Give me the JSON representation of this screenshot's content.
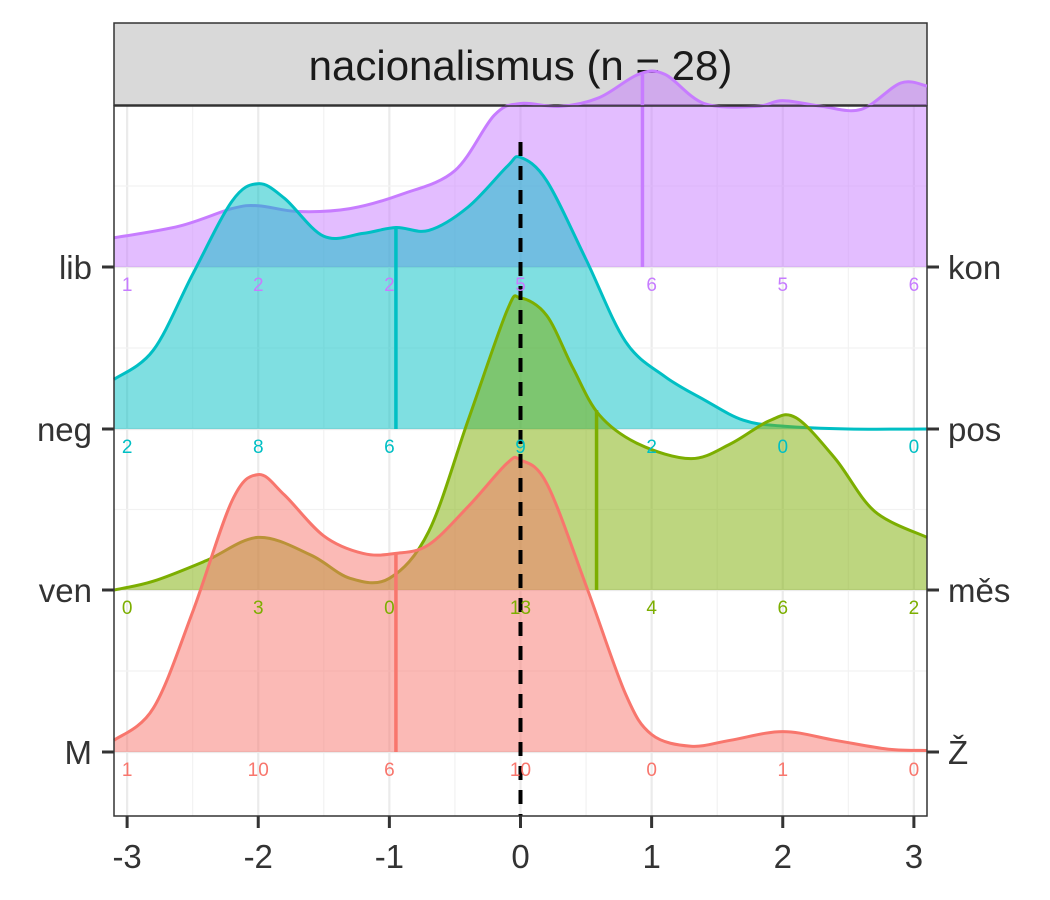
{
  "chart_data": {
    "type": "ridgeline",
    "title": "nacionalismus (n = 28)",
    "xlim": [
      -3.1,
      3.1
    ],
    "x_ticks": [
      -3,
      -2,
      -1,
      0,
      1,
      2,
      3
    ],
    "x_tick_labels": [
      "-3",
      "-2",
      "-1",
      "0",
      "1",
      "2",
      "3"
    ],
    "reference_line_x": 0,
    "count_positions": [
      -3,
      -2,
      -1,
      0,
      1,
      2,
      3
    ],
    "grid": true,
    "series": [
      {
        "left_label": "M",
        "right_label": "Ž",
        "color": "#F8766D",
        "fill": "#F8766D",
        "counts": [
          1,
          10,
          6,
          10,
          0,
          1,
          0
        ],
        "median": -0.95,
        "density": [
          [
            -3.1,
            0.04
          ],
          [
            -2.8,
            0.15
          ],
          [
            -2.5,
            0.48
          ],
          [
            -2.2,
            0.86
          ],
          [
            -2.0,
            0.95
          ],
          [
            -1.8,
            0.88
          ],
          [
            -1.5,
            0.74
          ],
          [
            -1.2,
            0.68
          ],
          [
            -0.95,
            0.68
          ],
          [
            -0.7,
            0.71
          ],
          [
            -0.4,
            0.84
          ],
          [
            -0.1,
            0.99
          ],
          [
            0.0,
            1.0
          ],
          [
            0.2,
            0.92
          ],
          [
            0.5,
            0.57
          ],
          [
            0.8,
            0.2
          ],
          [
            1.0,
            0.06
          ],
          [
            1.3,
            0.02
          ],
          [
            1.6,
            0.04
          ],
          [
            2.0,
            0.07
          ],
          [
            2.4,
            0.04
          ],
          [
            2.8,
            0.01
          ],
          [
            3.1,
            0.005
          ]
        ]
      },
      {
        "left_label": "ven",
        "right_label": "měs",
        "color": "#7CAE00",
        "fill": "#7CAE00",
        "counts": [
          0,
          3,
          0,
          13,
          4,
          6,
          2
        ],
        "median": 0.58,
        "density": [
          [
            -3.1,
            0.0
          ],
          [
            -2.8,
            0.03
          ],
          [
            -2.4,
            0.1
          ],
          [
            -2.0,
            0.18
          ],
          [
            -1.6,
            0.12
          ],
          [
            -1.3,
            0.04
          ],
          [
            -1.0,
            0.04
          ],
          [
            -0.7,
            0.2
          ],
          [
            -0.4,
            0.58
          ],
          [
            -0.1,
            0.96
          ],
          [
            0.0,
            1.0
          ],
          [
            0.2,
            0.94
          ],
          [
            0.4,
            0.76
          ],
          [
            0.6,
            0.6
          ],
          [
            0.9,
            0.5
          ],
          [
            1.3,
            0.45
          ],
          [
            1.6,
            0.5
          ],
          [
            1.9,
            0.58
          ],
          [
            2.1,
            0.59
          ],
          [
            2.4,
            0.45
          ],
          [
            2.7,
            0.27
          ],
          [
            3.1,
            0.18
          ]
        ]
      },
      {
        "left_label": "neg",
        "right_label": "pos",
        "color": "#00BFC4",
        "fill": "#00BFC4",
        "counts": [
          2,
          8,
          6,
          9,
          2,
          0,
          0
        ],
        "median": -0.95,
        "density": [
          [
            -3.1,
            0.17
          ],
          [
            -2.8,
            0.27
          ],
          [
            -2.5,
            0.53
          ],
          [
            -2.2,
            0.78
          ],
          [
            -2.0,
            0.84
          ],
          [
            -1.8,
            0.79
          ],
          [
            -1.5,
            0.66
          ],
          [
            -1.2,
            0.67
          ],
          [
            -0.95,
            0.69
          ],
          [
            -0.7,
            0.68
          ],
          [
            -0.4,
            0.76
          ],
          [
            -0.1,
            0.9
          ],
          [
            0.0,
            0.93
          ],
          [
            0.2,
            0.85
          ],
          [
            0.5,
            0.58
          ],
          [
            0.8,
            0.3
          ],
          [
            1.1,
            0.18
          ],
          [
            1.4,
            0.1
          ],
          [
            1.7,
            0.03
          ],
          [
            2.0,
            0.01
          ],
          [
            2.5,
            0.0
          ],
          [
            3.1,
            0.0
          ]
        ]
      },
      {
        "left_label": "lib",
        "right_label": "kon",
        "color": "#C77CFF",
        "fill": "#C77CFF",
        "counts": [
          1,
          2,
          2,
          5,
          6,
          5,
          6
        ],
        "median": 0.93,
        "density": [
          [
            -3.1,
            0.1
          ],
          [
            -2.6,
            0.14
          ],
          [
            -2.2,
            0.2
          ],
          [
            -2.0,
            0.21
          ],
          [
            -1.7,
            0.19
          ],
          [
            -1.3,
            0.2
          ],
          [
            -0.9,
            0.25
          ],
          [
            -0.5,
            0.33
          ],
          [
            -0.2,
            0.52
          ],
          [
            0.0,
            0.56
          ],
          [
            0.3,
            0.55
          ],
          [
            0.6,
            0.58
          ],
          [
            0.9,
            0.66
          ],
          [
            1.1,
            0.66
          ],
          [
            1.4,
            0.56
          ],
          [
            1.8,
            0.55
          ],
          [
            2.0,
            0.57
          ],
          [
            2.3,
            0.55
          ],
          [
            2.6,
            0.54
          ],
          [
            2.9,
            0.63
          ],
          [
            3.1,
            0.62
          ]
        ]
      }
    ]
  }
}
